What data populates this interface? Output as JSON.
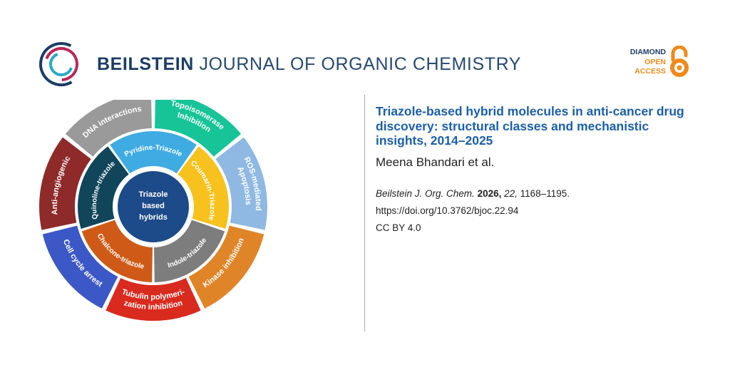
{
  "journal": {
    "name_bold": "BEILSTEIN",
    "name_light": "JOURNAL OF ORGANIC CHEMISTRY"
  },
  "badge": {
    "line1": "DIAMOND",
    "line2": "OPEN",
    "line3": "ACCESS"
  },
  "article": {
    "title": "Triazole-based hybrid molecules in anti-cancer drug discovery: structural classes and mechanistic insights, 2014–2025",
    "authors": "Meena Bhandari et al.",
    "journal_abbrev": "Beilstein J. Org. Chem.",
    "year": "2026,",
    "volume": "22,",
    "pages": "1168–1195.",
    "doi": "https://doi.org/10.3762/bjoc.22.94",
    "license": "CC BY 4.0"
  },
  "diagram": {
    "center_lines": [
      "Triazole",
      "based",
      "hybrids"
    ],
    "inner_segments": [
      {
        "label": "Pyridine-Triazole",
        "color": "#3eabe2"
      },
      {
        "label": "Coumarin-Triazole",
        "color": "#f7c21e"
      },
      {
        "label": "Indole-triazole",
        "color": "#7d7d7d"
      },
      {
        "label": "Chalcone-triazole",
        "color": "#cf5a17"
      },
      {
        "label": "Quinoline-triazole",
        "color": "#11455a"
      }
    ],
    "outer_segments": [
      {
        "label": "Topoisomerase",
        "label2": "Inhibition",
        "color": "#16c497"
      },
      {
        "label": "ROS-mediated",
        "label2": "Apoptosis",
        "color": "#8fb9e3"
      },
      {
        "label": "Kinase inhibition",
        "label2": "",
        "color": "#e08428"
      },
      {
        "label": "Tubulin polymeri-",
        "label2": "zation inhibition",
        "color": "#d92a1e"
      },
      {
        "label": "Cell cycle arrest",
        "label2": "",
        "color": "#3c58c6"
      },
      {
        "label": "Anti-angiogenic",
        "label2": "",
        "color": "#8f2a2a"
      },
      {
        "label": "DNA interactions",
        "label2": "",
        "color": "#9a9a9a"
      }
    ]
  }
}
